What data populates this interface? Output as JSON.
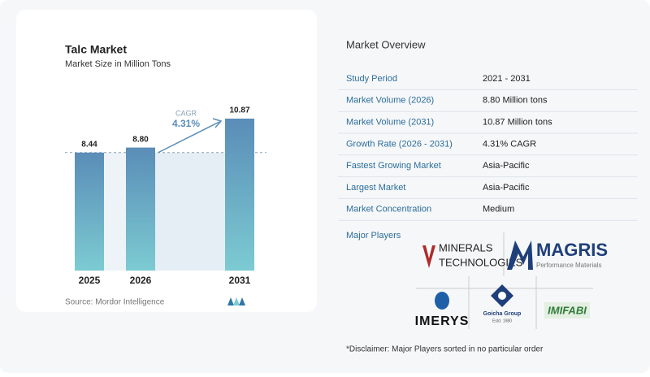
{
  "chart_data": {
    "type": "bar",
    "title": "Talc Market",
    "subtitle": "Market Size in Million Tons",
    "categories": [
      "2025",
      "2026",
      "2031"
    ],
    "values": [
      8.44,
      8.8,
      10.87
    ],
    "value_labels": [
      "8.44",
      "8.80",
      "10.87"
    ],
    "annotation": {
      "label": "CAGR",
      "value": "4.31%"
    },
    "source": "Source: Mordor Intelligence"
  },
  "overview": {
    "title": "Market Overview",
    "rows": [
      [
        "Study Period",
        "2021 - 2031"
      ],
      [
        "Market Volume (2026)",
        "8.80 Million tons"
      ],
      [
        "Market Volume (2031)",
        "10.87 Million tons"
      ],
      [
        "Growth Rate (2026 - 2031)",
        "4.31% CAGR"
      ],
      [
        "Fastest Growing Market",
        "Asia-Pacific"
      ],
      [
        "Largest Market",
        "Asia-Pacific"
      ],
      [
        "Market Concentration",
        "Medium"
      ]
    ],
    "players_title": "Major Players",
    "players": {
      "minerals": [
        "MINERALS",
        "TECHNOLOGIES"
      ],
      "magris": [
        "MAGRIS",
        "Performance Materials"
      ],
      "imerys": "IMERYS",
      "goicha": [
        "Goicha Group",
        "Estd. 1980"
      ],
      "imifabi": "IMIFABI"
    },
    "disclaimer": "*Disclaimer: Major Players sorted in no particular order"
  }
}
